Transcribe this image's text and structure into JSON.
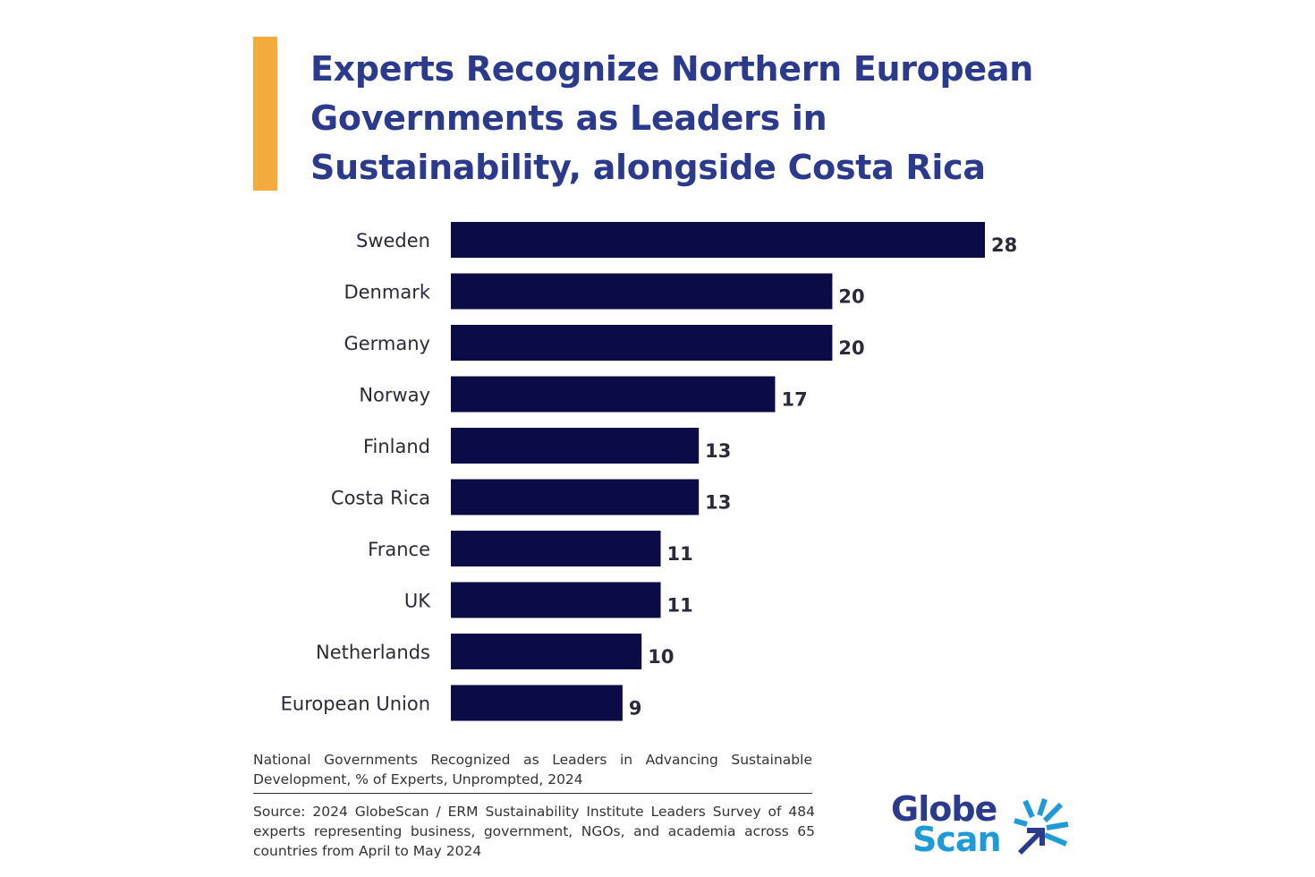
{
  "title": "Experts Recognize Northern European Governments as Leaders in Sustainability, alongside Costa Rica",
  "colors": {
    "accent": "#F5AA3C",
    "title": "#2B3A8C",
    "bar": "#0B0B47",
    "logo_dark": "#2B3A8C",
    "logo_light": "#1E9BD7"
  },
  "chart_data": {
    "type": "bar",
    "orientation": "horizontal",
    "categories": [
      "Sweden",
      "Denmark",
      "Germany",
      "Norway",
      "Finland",
      "Costa Rica",
      "France",
      "UK",
      "Netherlands",
      "European Union"
    ],
    "values": [
      28,
      20,
      20,
      17,
      13,
      13,
      11,
      11,
      10,
      9
    ],
    "data_labels": [
      "28",
      "20",
      "20",
      "17",
      "13",
      "13",
      "11",
      "11",
      "10",
      "9"
    ],
    "grid": false,
    "legend": "none"
  },
  "caption": "National Governments Recognized as Leaders in Advancing Sustainable Development, % of Experts, Unprompted, 2024",
  "source": "Source: 2024 GlobeScan / ERM Sustainability Institute Leaders Survey of 484 experts representing business, government, NGOs, and academia across 65 countries from April to May 2024",
  "logo": {
    "line1": "Globe",
    "line2": "Scan",
    "icon": "globescan-burst-icon"
  }
}
